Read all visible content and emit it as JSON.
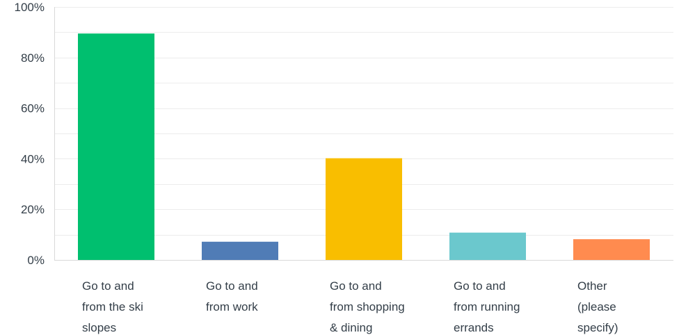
{
  "chart_data": {
    "type": "bar",
    "categories": [
      [
        "Go to and",
        "from the ski",
        "slopes"
      ],
      [
        "Go to and",
        "from work"
      ],
      [
        "Go to and",
        "from shopping",
        "& dining"
      ],
      [
        "Go to and",
        "from running",
        "errands"
      ],
      [
        "Other",
        "(please",
        "specify)"
      ]
    ],
    "values": [
      89.5,
      7.2,
      40.2,
      10.8,
      8.2
    ],
    "colors": [
      "#00bf6f",
      "#507cb6",
      "#f9be00",
      "#6bc8cd",
      "#ff8b4f"
    ],
    "ylim": [
      0,
      100
    ],
    "yticks": [
      0,
      20,
      40,
      60,
      80,
      100
    ],
    "ytick_labels": [
      "0%",
      "20%",
      "40%",
      "60%",
      "80%",
      "100%"
    ],
    "grid": true,
    "title": "",
    "xlabel": "",
    "ylabel": ""
  }
}
